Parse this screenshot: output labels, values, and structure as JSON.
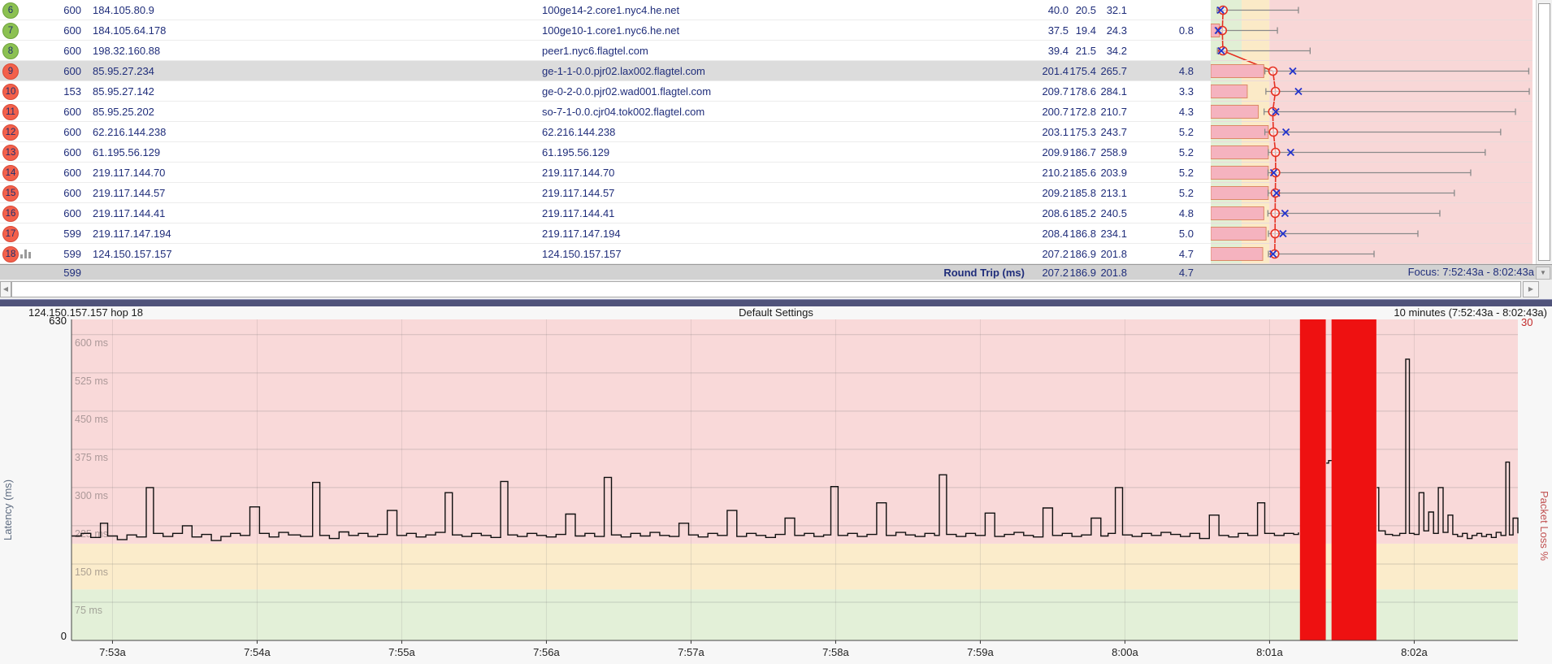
{
  "colors": {
    "navy_text": "#1f2d7a",
    "selected_row": "#dcdcdc",
    "badge_green": "#8cc152",
    "badge_red": "#f3604b",
    "zone_good": "#e1efd5",
    "zone_warn": "#fbeac7",
    "zone_bad": "#f8d7d7",
    "loss_bar": "#ee1111",
    "avg_line": "#e53022",
    "current_mark": "#2233cc",
    "range_line": "#8a8a8a",
    "pl_bar_fill": "#f5b3bf",
    "pl_bar_border": "#dd8866"
  },
  "table": {
    "rows": [
      {
        "hop": "6",
        "badge": "green",
        "count": "600",
        "ip": "184.105.80.9",
        "dns": "100ge14-2.core1.nyc4.he.net",
        "avg": "40.0",
        "min": "20.5",
        "cur": "32.1",
        "pl": "",
        "graphed": false,
        "range_max_ms": 284
      },
      {
        "hop": "7",
        "badge": "green",
        "count": "600",
        "ip": "184.105.64.178",
        "dns": "100ge10-1.core1.nyc6.he.net",
        "avg": "37.5",
        "min": "19.4",
        "cur": "24.3",
        "pl": "0.8",
        "graphed": false,
        "range_max_ms": 216
      },
      {
        "hop": "8",
        "badge": "green",
        "count": "600",
        "ip": "198.32.160.88",
        "dns": "peer1.nyc6.flagtel.com",
        "avg": "39.4",
        "min": "21.5",
        "cur": "34.2",
        "pl": "",
        "graphed": false,
        "range_max_ms": 322
      },
      {
        "hop": "9",
        "badge": "red",
        "count": "600",
        "ip": "85.95.27.234",
        "dns": "ge-1-1-0.0.pjr02.lax002.flagtel.com",
        "avg": "201.4",
        "min": "175.4",
        "cur": "265.7",
        "pl": "4.8",
        "graphed": false,
        "selected": true,
        "range_max_ms": 1030
      },
      {
        "hop": "10",
        "badge": "red",
        "count": "153",
        "ip": "85.95.27.142",
        "dns": "ge-0-2-0.0.pjr02.wad001.flagtel.com",
        "avg": "209.7",
        "min": "178.6",
        "cur": "284.1",
        "pl": "3.3",
        "graphed": false,
        "range_max_ms": 1037
      },
      {
        "hop": "11",
        "badge": "red",
        "count": "600",
        "ip": "85.95.25.202",
        "dns": "so-7-1-0.0.cjr04.tok002.flagtel.com",
        "avg": "200.7",
        "min": "172.8",
        "cur": "210.7",
        "pl": "4.3",
        "graphed": false,
        "range_max_ms": 987
      },
      {
        "hop": "12",
        "badge": "red",
        "count": "600",
        "ip": "62.216.144.238",
        "dns": "62.216.144.238",
        "avg": "203.1",
        "min": "175.3",
        "cur": "243.7",
        "pl": "5.2",
        "graphed": false,
        "range_max_ms": 939
      },
      {
        "hop": "13",
        "badge": "red",
        "count": "600",
        "ip": "61.195.56.129",
        "dns": "61.195.56.129",
        "avg": "209.9",
        "min": "186.7",
        "cur": "258.9",
        "pl": "5.2",
        "graphed": false,
        "range_max_ms": 889
      },
      {
        "hop": "14",
        "badge": "red",
        "count": "600",
        "ip": "219.117.144.70",
        "dns": "219.117.144.70",
        "avg": "210.2",
        "min": "185.6",
        "cur": "203.9",
        "pl": "5.2",
        "graphed": false,
        "range_max_ms": 842
      },
      {
        "hop": "15",
        "badge": "red",
        "count": "600",
        "ip": "219.117.144.57",
        "dns": "219.117.144.57",
        "avg": "209.2",
        "min": "185.8",
        "cur": "213.1",
        "pl": "5.2",
        "graphed": false,
        "range_max_ms": 789
      },
      {
        "hop": "16",
        "badge": "red",
        "count": "600",
        "ip": "219.117.144.41",
        "dns": "219.117.144.41",
        "avg": "208.6",
        "min": "185.2",
        "cur": "240.5",
        "pl": "4.8",
        "graphed": false,
        "range_max_ms": 742
      },
      {
        "hop": "17",
        "badge": "red",
        "count": "599",
        "ip": "219.117.147.194",
        "dns": "219.117.147.194",
        "avg": "208.4",
        "min": "186.8",
        "cur": "234.1",
        "pl": "5.0",
        "graphed": false,
        "range_max_ms": 671
      },
      {
        "hop": "18",
        "badge": "red",
        "count": "599",
        "ip": "124.150.157.157",
        "dns": "124.150.157.157",
        "avg": "207.2",
        "min": "186.9",
        "cur": "201.8",
        "pl": "4.7",
        "graphed": true,
        "range_max_ms": 529
      }
    ],
    "footer": {
      "count": "599",
      "label": "Round Trip (ms)",
      "avg": "207.2",
      "min": "186.9",
      "cur": "201.8",
      "pl": "4.7",
      "focus": "Focus: 7:52:43a - 8:02:43a"
    },
    "minigraph_zones_ms": {
      "good_to": 100,
      "warn_to": 190
    },
    "pl_scale_max_pct": 30
  },
  "chart_data": {
    "type": "line",
    "title_left": "124.150.157.157 hop 18",
    "title_center": "Default Settings",
    "title_right": "10 minutes (7:52:43a - 8:02:43a)",
    "y_axis": {
      "label": "Latency (ms)",
      "max": 630,
      "max_label": "630",
      "min_label": "0",
      "gridlines": [
        {
          "v": 600,
          "label": "600 ms"
        },
        {
          "v": 525,
          "label": "525 ms"
        },
        {
          "v": 450,
          "label": "450 ms"
        },
        {
          "v": 375,
          "label": "375 ms"
        },
        {
          "v": 300,
          "label": "300 ms"
        },
        {
          "v": 225,
          "label": "225 ms"
        },
        {
          "v": 150,
          "label": "150 ms"
        },
        {
          "v": 75,
          "label": "75 ms"
        }
      ]
    },
    "right_axis": {
      "label": "Packet Loss %",
      "max_label": "30"
    },
    "x_axis": {
      "start": "7:52:43a",
      "end": "8:02:43a",
      "duration_s": 600,
      "tick_labels": [
        "7:53a",
        "7:54a",
        "7:55a",
        "7:56a",
        "7:57a",
        "7:58a",
        "7:59a",
        "8:00a",
        "8:01a",
        "8:02a"
      ],
      "tick_offsets_s": [
        17,
        77,
        137,
        197,
        257,
        317,
        377,
        437,
        497,
        557
      ]
    },
    "zones": [
      {
        "from": 0,
        "to": 100,
        "color": "#e3f0d8"
      },
      {
        "from": 100,
        "to": 190,
        "color": "#fbeccb"
      },
      {
        "from": 190,
        "to": 630,
        "color": "#f9d9d9"
      }
    ],
    "loss_periods_s": [
      [
        509.6,
        520.3
      ],
      [
        522.7,
        541.3
      ]
    ],
    "series_segments": [
      [
        [
          0,
          205
        ],
        [
          4,
          210
        ],
        [
          8,
          202
        ],
        [
          12,
          230
        ],
        [
          15,
          205
        ],
        [
          19,
          198
        ],
        [
          23,
          207
        ],
        [
          27,
          203
        ],
        [
          31,
          300
        ],
        [
          34,
          210
        ],
        [
          38,
          204
        ],
        [
          42,
          210
        ],
        [
          46,
          225
        ],
        [
          50,
          203
        ],
        [
          54,
          208
        ],
        [
          58,
          196
        ],
        [
          62,
          204
        ],
        [
          66,
          210
        ],
        [
          70,
          206
        ],
        [
          74,
          262
        ],
        [
          78,
          210
        ],
        [
          82,
          203
        ],
        [
          86,
          212
        ],
        [
          90,
          207
        ],
        [
          95,
          204
        ],
        [
          100,
          310
        ],
        [
          103,
          206
        ],
        [
          107,
          200
        ],
        [
          111,
          213
        ],
        [
          115,
          206
        ],
        [
          119,
          210
        ],
        [
          123,
          204
        ],
        [
          127,
          208
        ],
        [
          131,
          255
        ],
        [
          135,
          206
        ],
        [
          139,
          210
        ],
        [
          143,
          203
        ],
        [
          147,
          207
        ],
        [
          151,
          212
        ],
        [
          155,
          290
        ],
        [
          158,
          207
        ],
        [
          162,
          204
        ],
        [
          166,
          210
        ],
        [
          170,
          206
        ],
        [
          174,
          202
        ],
        [
          178,
          312
        ],
        [
          181,
          207
        ],
        [
          185,
          204
        ],
        [
          189,
          210
        ],
        [
          193,
          206
        ],
        [
          197,
          203
        ],
        [
          201,
          208
        ],
        [
          205,
          248
        ],
        [
          209,
          205
        ],
        [
          213,
          210
        ],
        [
          217,
          204
        ],
        [
          221,
          320
        ],
        [
          224,
          207
        ],
        [
          228,
          203
        ],
        [
          232,
          210
        ],
        [
          236,
          205
        ],
        [
          240,
          212
        ],
        [
          244,
          206
        ],
        [
          248,
          204
        ],
        [
          252,
          230
        ],
        [
          256,
          207
        ],
        [
          260,
          203
        ],
        [
          264,
          210
        ],
        [
          268,
          206
        ],
        [
          272,
          255
        ],
        [
          276,
          204
        ],
        [
          280,
          210
        ],
        [
          284,
          206
        ],
        [
          288,
          202
        ],
        [
          292,
          208
        ],
        [
          296,
          240
        ],
        [
          300,
          206
        ],
        [
          304,
          210
        ],
        [
          308,
          204
        ],
        [
          312,
          207
        ],
        [
          315,
          302
        ],
        [
          318,
          206
        ],
        [
          322,
          210
        ],
        [
          326,
          204
        ],
        [
          330,
          208
        ],
        [
          334,
          270
        ],
        [
          338,
          206
        ],
        [
          342,
          212
        ],
        [
          346,
          207
        ],
        [
          350,
          204
        ],
        [
          354,
          210
        ],
        [
          358,
          206
        ],
        [
          360,
          325
        ],
        [
          363,
          208
        ],
        [
          367,
          204
        ],
        [
          371,
          210
        ],
        [
          375,
          206
        ],
        [
          379,
          250
        ],
        [
          383,
          204
        ],
        [
          387,
          208
        ],
        [
          391,
          212
        ],
        [
          395,
          206
        ],
        [
          399,
          203
        ],
        [
          403,
          260
        ],
        [
          407,
          206
        ],
        [
          411,
          210
        ],
        [
          415,
          204
        ],
        [
          419,
          207
        ],
        [
          423,
          240
        ],
        [
          427,
          205
        ],
        [
          430,
          210
        ],
        [
          433,
          300
        ],
        [
          436,
          207
        ],
        [
          440,
          204
        ],
        [
          444,
          210
        ],
        [
          448,
          206
        ],
        [
          452,
          212
        ],
        [
          456,
          208
        ],
        [
          460,
          204
        ],
        [
          464,
          210
        ],
        [
          468,
          200
        ],
        [
          472,
          246
        ],
        [
          476,
          206
        ],
        [
          480,
          203
        ],
        [
          484,
          210
        ],
        [
          488,
          206
        ],
        [
          492,
          270
        ],
        [
          495,
          210
        ],
        [
          499,
          206
        ],
        [
          503,
          210
        ],
        [
          507,
          208
        ],
        [
          509,
          212
        ]
      ],
      [
        [
          520.5,
          348
        ],
        [
          521.5,
          353
        ],
        [
          522.5,
          352
        ]
      ],
      [
        [
          541.5,
          300
        ],
        [
          542.3,
          215
        ],
        [
          545,
          208
        ],
        [
          548,
          206
        ],
        [
          551,
          210
        ],
        [
          553.5,
          552
        ],
        [
          555,
          210
        ],
        [
          557,
          208
        ],
        [
          559,
          290
        ],
        [
          561,
          215
        ],
        [
          563,
          252
        ],
        [
          565,
          210
        ],
        [
          567,
          300
        ],
        [
          569,
          212
        ],
        [
          571,
          246
        ],
        [
          573,
          208
        ],
        [
          575,
          204
        ],
        [
          577,
          210
        ],
        [
          579,
          200
        ],
        [
          581,
          206
        ],
        [
          583,
          210
        ],
        [
          585,
          204
        ],
        [
          587,
          208
        ],
        [
          589,
          202
        ],
        [
          591,
          212
        ],
        [
          593,
          206
        ],
        [
          595,
          350
        ],
        [
          596.5,
          207
        ],
        [
          598,
          240
        ],
        [
          600,
          210
        ]
      ]
    ]
  }
}
